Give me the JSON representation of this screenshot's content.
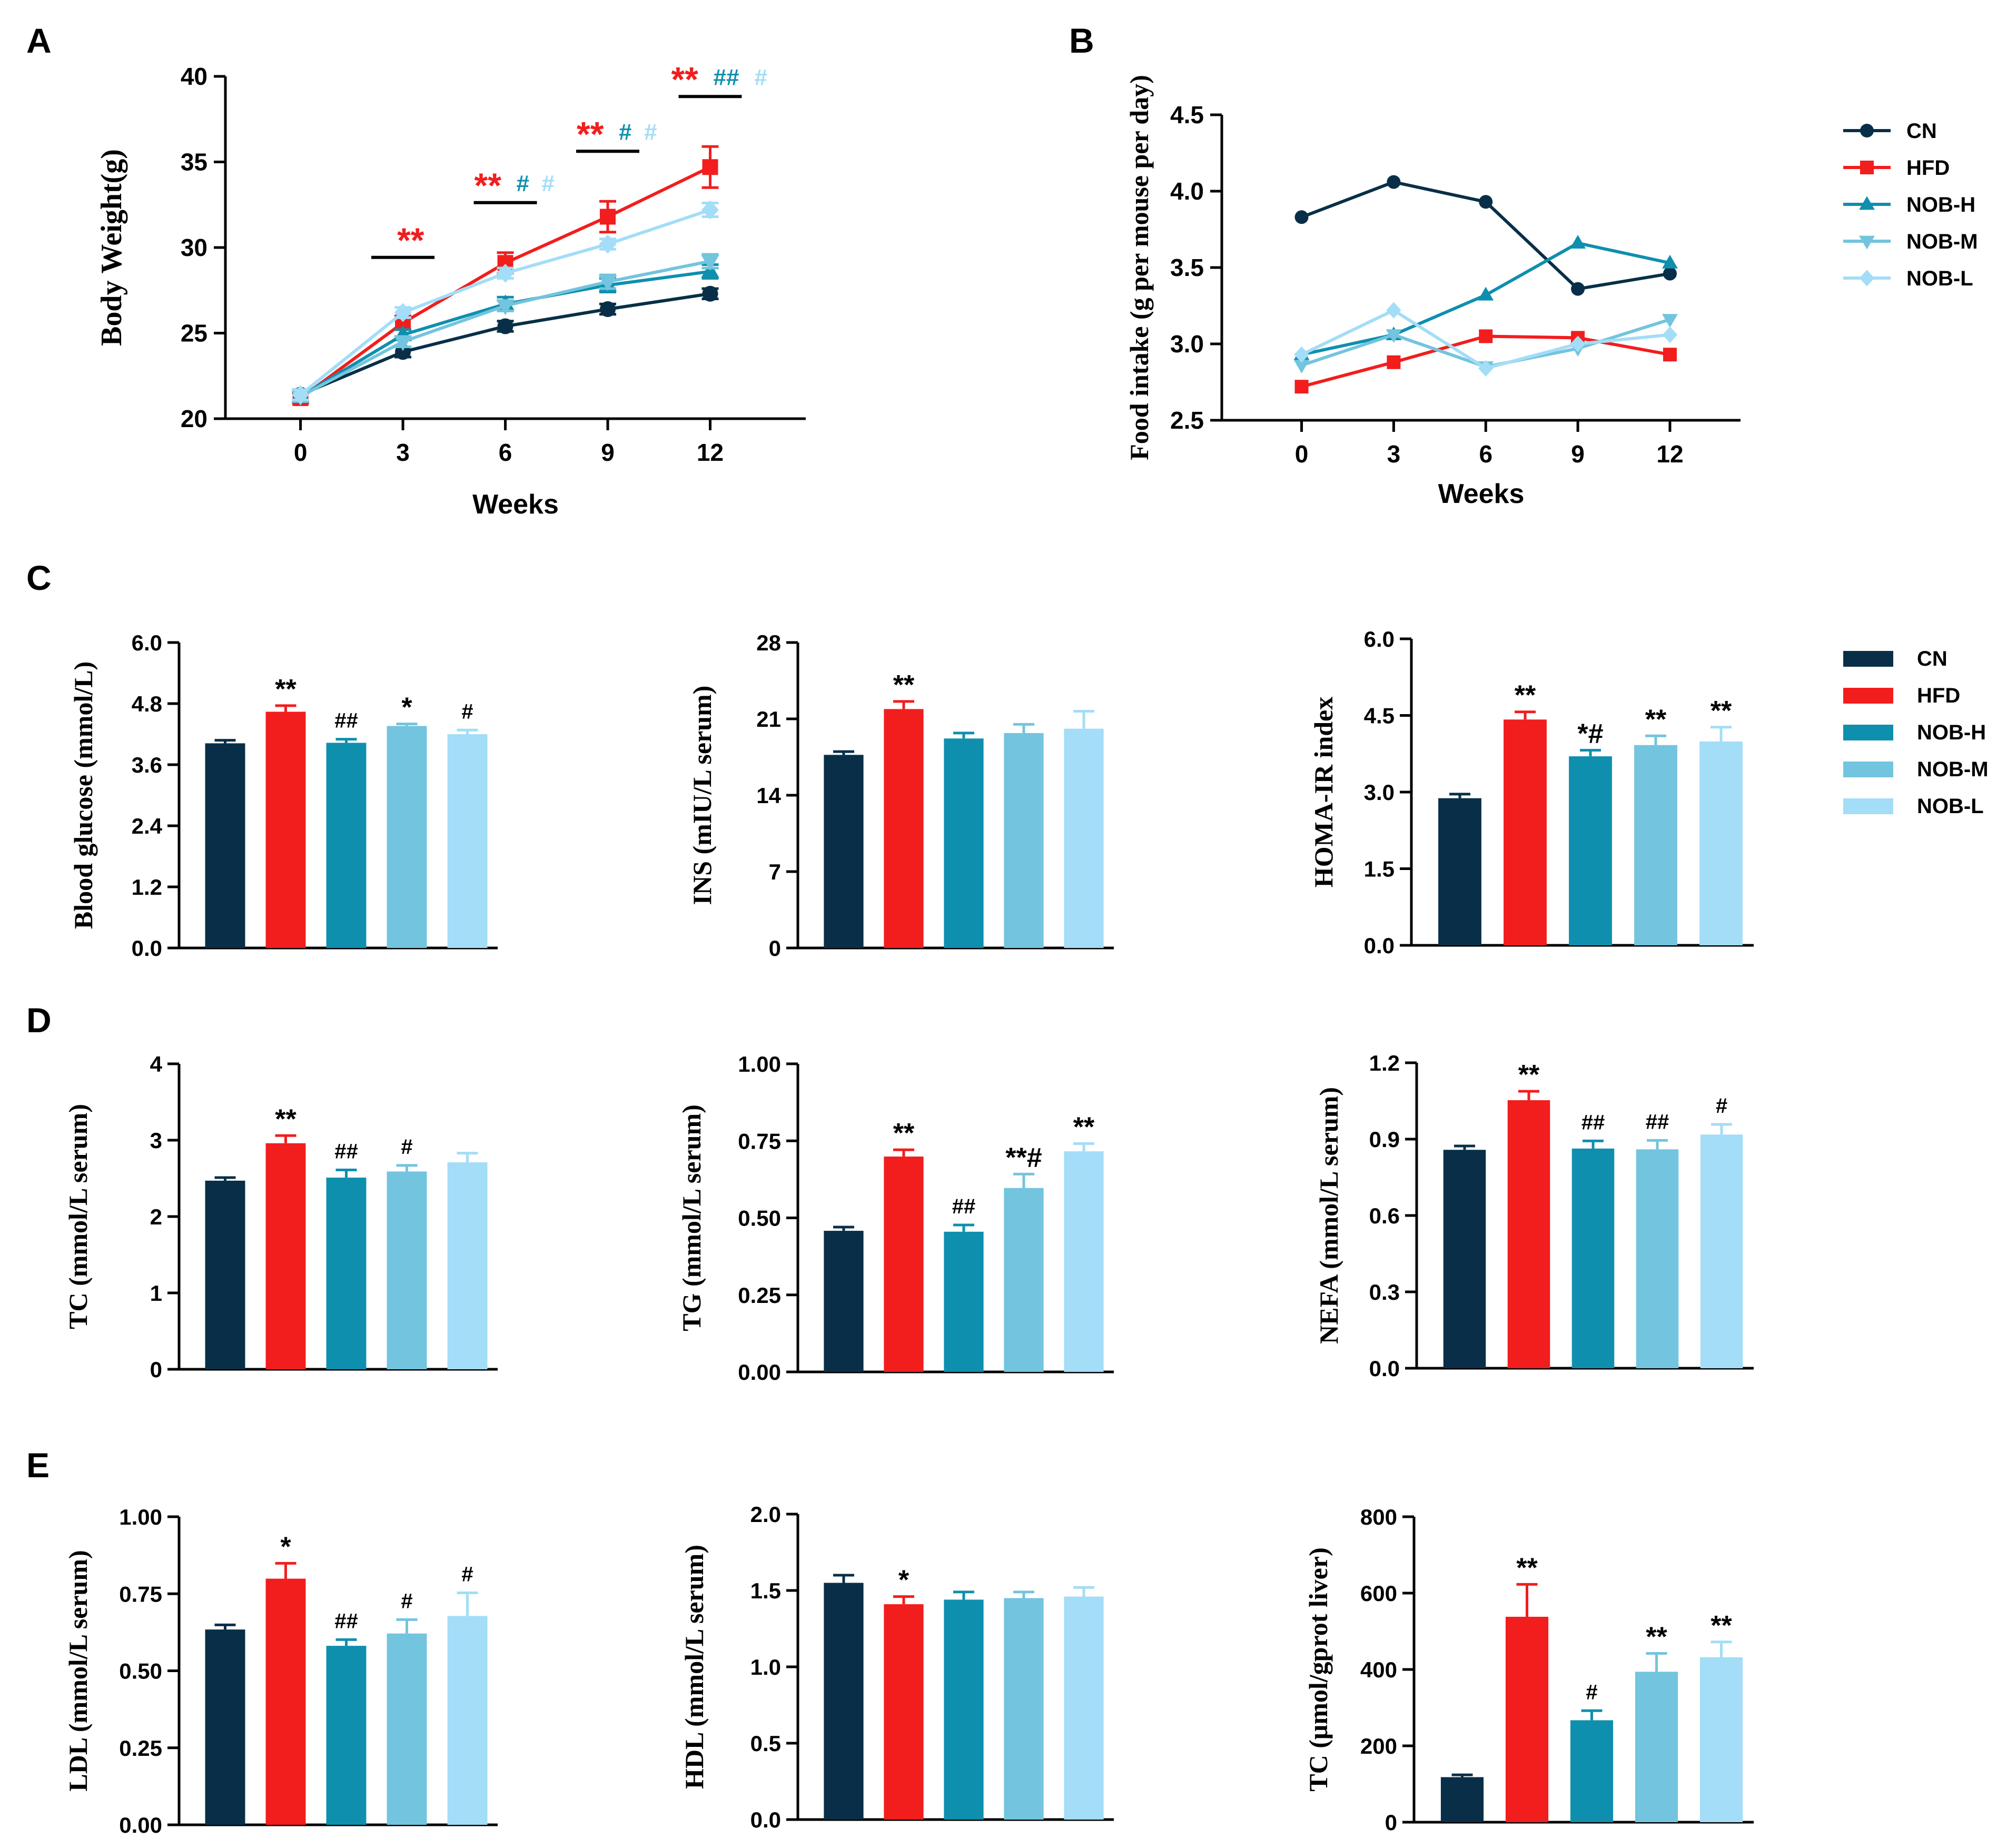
{
  "colors": {
    "CN": "#082f47",
    "HFD": "#f21d1d",
    "NOB-H": "#0f8fae",
    "NOB-M": "#73c4de",
    "NOB-L": "#a3ddf7",
    "axis": "#000000"
  },
  "panel_letters": [
    "A",
    "B",
    "C",
    "D",
    "E"
  ],
  "chart_data": [
    {
      "id": "A",
      "type": "line",
      "ylabel": "Body Weight(g)",
      "xlabel": "Weeks",
      "ylim": [
        20,
        40
      ],
      "yticks": [
        20,
        25,
        30,
        35,
        40
      ],
      "x": [
        0,
        3,
        6,
        9,
        12
      ],
      "series": [
        {
          "name": "CN",
          "marker": "circle",
          "values": [
            21.4,
            23.9,
            25.4,
            26.4,
            27.3
          ],
          "err": [
            0.3,
            0.3,
            0.3,
            0.3,
            0.3
          ]
        },
        {
          "name": "HFD",
          "marker": "square",
          "values": [
            21.2,
            25.6,
            29.1,
            31.8,
            34.7
          ],
          "err": [
            0.3,
            0.4,
            0.6,
            0.9,
            1.2
          ]
        },
        {
          "name": "NOB-H",
          "marker": "triangle",
          "values": [
            21.3,
            24.9,
            26.7,
            27.8,
            28.6
          ],
          "err": [
            0.3,
            0.3,
            0.4,
            0.4,
            0.4
          ]
        },
        {
          "name": "NOB-M",
          "marker": "triangle-down",
          "values": [
            21.3,
            24.5,
            26.6,
            28.0,
            29.2
          ],
          "err": [
            0.3,
            0.3,
            0.3,
            0.4,
            0.4
          ]
        },
        {
          "name": "NOB-L",
          "marker": "diamond",
          "values": [
            21.4,
            26.2,
            28.5,
            30.2,
            32.2
          ],
          "err": [
            0.3,
            0.3,
            0.3,
            0.3,
            0.4
          ]
        }
      ],
      "annotations": [
        {
          "week": 3,
          "marks": [
            {
              "text": "**",
              "color": "HFD"
            }
          ]
        },
        {
          "week": 6,
          "marks": [
            {
              "text": "**",
              "color": "HFD"
            },
            {
              "text": "#",
              "color": "NOB-H"
            },
            {
              "text": "#",
              "color": "NOB-L"
            }
          ]
        },
        {
          "week": 9,
          "marks": [
            {
              "text": "**",
              "color": "HFD"
            },
            {
              "text": "#",
              "color": "NOB-H"
            },
            {
              "text": "#",
              "color": "NOB-L"
            }
          ]
        },
        {
          "week": 12,
          "marks": [
            {
              "text": "**",
              "color": "HFD"
            },
            {
              "text": "##",
              "color": "NOB-H"
            },
            {
              "text": "#",
              "color": "NOB-L"
            }
          ]
        }
      ]
    },
    {
      "id": "B",
      "type": "line",
      "ylabel": "Food intake (g per mouse per day)",
      "xlabel": "Weeks",
      "ylim": [
        2.5,
        4.5
      ],
      "yticks": [
        "2.5",
        "3.0",
        "3.5",
        "4.0",
        "4.5"
      ],
      "x": [
        0,
        3,
        6,
        9,
        12
      ],
      "series": [
        {
          "name": "CN",
          "marker": "circle",
          "values": [
            3.83,
            4.06,
            3.93,
            3.36,
            3.46
          ]
        },
        {
          "name": "HFD",
          "marker": "square",
          "values": [
            2.72,
            2.88,
            3.05,
            3.04,
            2.93
          ]
        },
        {
          "name": "NOB-H",
          "marker": "triangle",
          "values": [
            2.93,
            3.06,
            3.32,
            3.66,
            3.53
          ]
        },
        {
          "name": "NOB-M",
          "marker": "triangle-down",
          "values": [
            2.86,
            3.06,
            2.85,
            2.97,
            3.16
          ]
        },
        {
          "name": "NOB-L",
          "marker": "diamond",
          "values": [
            2.93,
            3.22,
            2.84,
            3.0,
            3.06
          ]
        }
      ],
      "legend": [
        "CN",
        "HFD",
        "NOB-H",
        "NOB-M",
        "NOB-L"
      ]
    },
    {
      "id": "C1",
      "type": "bar",
      "ylabel": "Blood glucose (mmol/L)",
      "ylim": [
        0,
        6.0
      ],
      "yticks": [
        "0.0",
        "1.2",
        "2.4",
        "3.6",
        "4.8",
        "6.0"
      ],
      "categories": [
        "CN",
        "HFD",
        "NOB-H",
        "NOB-M",
        "NOB-L"
      ],
      "values": [
        4.02,
        4.64,
        4.03,
        4.36,
        4.2
      ],
      "err": [
        0.06,
        0.12,
        0.07,
        0.04,
        0.08
      ],
      "labels": [
        "",
        "**",
        "##",
        "*",
        "#"
      ]
    },
    {
      "id": "C2",
      "type": "bar",
      "ylabel": "INS (mIU/L serum)",
      "ylim": [
        0,
        28
      ],
      "yticks": [
        "0",
        "7",
        "14",
        "21",
        "28"
      ],
      "categories": [
        "CN",
        "HFD",
        "NOB-H",
        "NOB-M",
        "NOB-L"
      ],
      "values": [
        17.7,
        21.9,
        19.2,
        19.7,
        20.1
      ],
      "err": [
        0.3,
        0.7,
        0.5,
        0.8,
        1.6
      ],
      "labels": [
        "",
        "**",
        "",
        "",
        ""
      ]
    },
    {
      "id": "C3",
      "type": "bar",
      "ylabel": "HOMA-IR index",
      "ylim": [
        0,
        6.0
      ],
      "yticks": [
        "0.0",
        "1.5",
        "3.0",
        "4.5",
        "6.0"
      ],
      "categories": [
        "CN",
        "HFD",
        "NOB-H",
        "NOB-M",
        "NOB-L"
      ],
      "values": [
        2.88,
        4.42,
        3.7,
        3.92,
        3.99
      ],
      "err": [
        0.08,
        0.15,
        0.12,
        0.18,
        0.28
      ],
      "labels": [
        "",
        "**",
        "*#",
        "**",
        "**"
      ],
      "legend": [
        "CN",
        "HFD",
        "NOB-H",
        "NOB-M",
        "NOB-L"
      ]
    },
    {
      "id": "D1",
      "type": "bar",
      "ylabel": "TC (mmol/L serum)",
      "ylim": [
        0,
        4
      ],
      "yticks": [
        "0",
        "1",
        "2",
        "3",
        "4"
      ],
      "categories": [
        "CN",
        "HFD",
        "NOB-H",
        "NOB-M",
        "NOB-L"
      ],
      "values": [
        2.47,
        2.96,
        2.51,
        2.59,
        2.71
      ],
      "err": [
        0.04,
        0.1,
        0.1,
        0.08,
        0.12
      ],
      "labels": [
        "",
        "**",
        "##",
        "#",
        ""
      ]
    },
    {
      "id": "D2",
      "type": "bar",
      "ylabel": "TG (mmol/L serum)",
      "ylim": [
        0,
        1.0
      ],
      "yticks": [
        "0.00",
        "0.25",
        "0.50",
        "0.75",
        "1.00"
      ],
      "categories": [
        "CN",
        "HFD",
        "NOB-H",
        "NOB-M",
        "NOB-L"
      ],
      "values": [
        0.458,
        0.699,
        0.455,
        0.597,
        0.716
      ],
      "err": [
        0.012,
        0.022,
        0.022,
        0.045,
        0.025
      ],
      "labels": [
        "",
        "**",
        "##",
        "**#",
        "**"
      ]
    },
    {
      "id": "D3",
      "type": "bar",
      "ylabel": "NEFA (mmol/L serum)",
      "ylim": [
        0,
        1.2
      ],
      "yticks": [
        "0.0",
        "0.3",
        "0.6",
        "0.9",
        "1.2"
      ],
      "categories": [
        "CN",
        "HFD",
        "NOB-H",
        "NOB-M",
        "NOB-L"
      ],
      "values": [
        0.858,
        1.053,
        0.863,
        0.86,
        0.918
      ],
      "err": [
        0.015,
        0.035,
        0.03,
        0.035,
        0.04
      ],
      "labels": [
        "",
        "**",
        "##",
        "##",
        "#"
      ]
    },
    {
      "id": "E1",
      "type": "bar",
      "ylabel": "LDL (mmol/L serum)",
      "ylim": [
        0,
        1.0
      ],
      "yticks": [
        "0.00",
        "0.25",
        "0.50",
        "0.75",
        "1.00"
      ],
      "categories": [
        "CN",
        "HFD",
        "NOB-H",
        "NOB-M",
        "NOB-L"
      ],
      "values": [
        0.634,
        0.799,
        0.581,
        0.621,
        0.678
      ],
      "err": [
        0.015,
        0.05,
        0.02,
        0.045,
        0.075
      ],
      "labels": [
        "",
        "*",
        "##",
        "#",
        "#"
      ]
    },
    {
      "id": "E2",
      "type": "bar",
      "ylabel": "HDL (mmol/L serum)",
      "ylim": [
        0,
        2.0
      ],
      "yticks": [
        "0.0",
        "0.5",
        "1.0",
        "1.5",
        "2.0"
      ],
      "categories": [
        "CN",
        "HFD",
        "NOB-H",
        "NOB-M",
        "NOB-L"
      ],
      "values": [
        1.55,
        1.41,
        1.44,
        1.45,
        1.46
      ],
      "err": [
        0.05,
        0.05,
        0.05,
        0.04,
        0.06
      ],
      "labels": [
        "",
        "*",
        "",
        "",
        ""
      ]
    },
    {
      "id": "E3",
      "type": "bar",
      "ylabel": "TC (μmol/gprot liver)",
      "ylim": [
        0,
        800
      ],
      "yticks": [
        "0",
        "200",
        "400",
        "600",
        "800"
      ],
      "categories": [
        "CN",
        "HFD",
        "NOB-H",
        "NOB-M",
        "NOB-L"
      ],
      "values": [
        118,
        538,
        267,
        394,
        432
      ],
      "err": [
        6,
        85,
        25,
        48,
        40
      ],
      "labels": [
        "",
        "**",
        "#",
        "**",
        "**"
      ]
    }
  ]
}
